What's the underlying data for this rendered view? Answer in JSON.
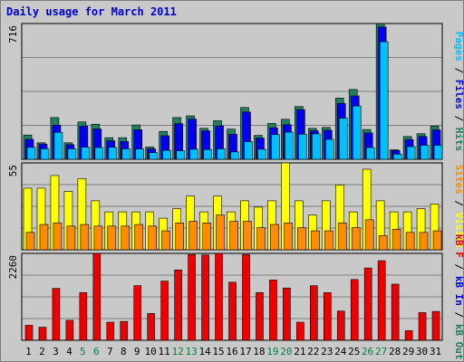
{
  "title": "Daily usage for March 2011",
  "colors": {
    "hits": "#1f7f5f",
    "files": "#0000ee",
    "pages": "#00bfff",
    "visits": "#ffff00",
    "sites": "#ff8c00",
    "kb_in": "#ee0000",
    "kb_out": "#ff7f00",
    "weekend_label": "#008040",
    "weekday_label": "#000000",
    "panel_bg": "#c9c9c9",
    "grid": "#808080"
  },
  "chart_data": [
    {
      "type": "bar",
      "panel": "top",
      "ymax_label": "716",
      "ylim": [
        0,
        716
      ],
      "right_label_parts": [
        {
          "text": "Pages",
          "color": "#00bfff"
        },
        {
          "text": " / ",
          "color": "#000000"
        },
        {
          "text": "Files",
          "color": "#0000ee"
        },
        {
          "text": " / ",
          "color": "#000000"
        },
        {
          "text": "Hits",
          "color": "#1f7f5f"
        }
      ],
      "categories": [
        "1",
        "2",
        "3",
        "4",
        "5",
        "6",
        "7",
        "8",
        "9",
        "10",
        "11",
        "12",
        "13",
        "14",
        "15",
        "16",
        "17",
        "18",
        "19",
        "20",
        "21",
        "22",
        "23",
        "24",
        "25",
        "26",
        "27",
        "28",
        "29",
        "30",
        "31"
      ],
      "series": [
        {
          "name": "Hits",
          "values": [
            128,
            87,
            220,
            87,
            197,
            185,
            114,
            114,
            181,
            65,
            147,
            220,
            229,
            163,
            203,
            159,
            273,
            126,
            189,
            211,
            278,
            163,
            168,
            323,
            368,
            157,
            716,
            50,
            120,
            135,
            175
          ]
        },
        {
          "name": "Files",
          "values": [
            105,
            80,
            180,
            77,
            175,
            160,
            98,
            94,
            156,
            55,
            124,
            188,
            212,
            150,
            176,
            132,
            249,
            112,
            166,
            183,
            262,
            150,
            153,
            295,
            334,
            139,
            698,
            47,
            104,
            120,
            155
          ]
        },
        {
          "name": "Pages",
          "values": [
            63,
            55,
            142,
            55,
            64,
            62,
            63,
            55,
            54,
            35,
            47,
            45,
            53,
            51,
            55,
            39,
            93,
            53,
            130,
            143,
            132,
            134,
            105,
            217,
            281,
            62,
            620,
            27,
            67,
            74,
            74
          ]
        }
      ]
    },
    {
      "type": "bar",
      "panel": "middle",
      "ymax_label": "55",
      "ylim": [
        0,
        55
      ],
      "right_label_parts": [
        {
          "text": "Sites",
          "color": "#ff8c00"
        },
        {
          "text": " / ",
          "color": "#000000"
        },
        {
          "text": "Visits",
          "color": "#ffff00"
        }
      ],
      "categories": [
        "1",
        "2",
        "3",
        "4",
        "5",
        "6",
        "7",
        "8",
        "9",
        "10",
        "11",
        "12",
        "13",
        "14",
        "15",
        "16",
        "17",
        "18",
        "19",
        "20",
        "21",
        "22",
        "23",
        "24",
        "25",
        "26",
        "27",
        "28",
        "29",
        "30",
        "31"
      ],
      "series": [
        {
          "name": "Visits",
          "values": [
            39,
            39,
            47,
            37,
            45,
            31,
            24,
            24,
            24,
            24,
            20,
            26,
            34,
            24,
            34,
            24,
            31,
            27,
            31,
            55,
            31,
            22,
            31,
            41,
            24,
            51,
            31,
            24,
            24,
            26,
            29
          ]
        },
        {
          "name": "Sites",
          "values": [
            11,
            16,
            17,
            15,
            16,
            15,
            15,
            15,
            16,
            15,
            12,
            17,
            18,
            17,
            22,
            18,
            18,
            14,
            16,
            17,
            14,
            12,
            12,
            17,
            14,
            19,
            9,
            13,
            11,
            11,
            12
          ]
        }
      ]
    },
    {
      "type": "bar",
      "panel": "bottom",
      "ymax_label": "2260",
      "ylim": [
        0,
        2260
      ],
      "right_label_parts": [
        {
          "text": "kB F",
          "color": "#ee0000"
        },
        {
          "text": " / ",
          "color": "#000000"
        },
        {
          "text": "kB In",
          "color": "#0000ee"
        },
        {
          "text": " / ",
          "color": "#000000"
        },
        {
          "text": "kB Out",
          "color": "#1f7f5f"
        }
      ],
      "categories": [
        "1",
        "2",
        "3",
        "4",
        "5",
        "6",
        "7",
        "8",
        "9",
        "10",
        "11",
        "12",
        "13",
        "14",
        "15",
        "16",
        "17",
        "18",
        "19",
        "20",
        "21",
        "22",
        "23",
        "24",
        "25",
        "26",
        "27",
        "28",
        "29",
        "30",
        "31"
      ],
      "series": [
        {
          "name": "kB F",
          "values": [
            390,
            340,
            1350,
            520,
            1240,
            2260,
            470,
            490,
            1420,
            700,
            1540,
            1830,
            2230,
            2220,
            2260,
            1510,
            2230,
            1240,
            1570,
            1360,
            470,
            1420,
            1240,
            760,
            1580,
            1880,
            2070,
            1460,
            250,
            720,
            750
          ]
        }
      ]
    }
  ],
  "x_labels": [
    {
      "text": "1",
      "weekend": false
    },
    {
      "text": "2",
      "weekend": false
    },
    {
      "text": "3",
      "weekend": false
    },
    {
      "text": "4",
      "weekend": false
    },
    {
      "text": "5",
      "weekend": true
    },
    {
      "text": "6",
      "weekend": true
    },
    {
      "text": "7",
      "weekend": false
    },
    {
      "text": "8",
      "weekend": false
    },
    {
      "text": "9",
      "weekend": false
    },
    {
      "text": "10",
      "weekend": false
    },
    {
      "text": "11",
      "weekend": false
    },
    {
      "text": "12",
      "weekend": true
    },
    {
      "text": "13",
      "weekend": true
    },
    {
      "text": "14",
      "weekend": false
    },
    {
      "text": "15",
      "weekend": false
    },
    {
      "text": "16",
      "weekend": false
    },
    {
      "text": "17",
      "weekend": false
    },
    {
      "text": "18",
      "weekend": false
    },
    {
      "text": "19",
      "weekend": true
    },
    {
      "text": "20",
      "weekend": true
    },
    {
      "text": "21",
      "weekend": false
    },
    {
      "text": "22",
      "weekend": false
    },
    {
      "text": "23",
      "weekend": false
    },
    {
      "text": "24",
      "weekend": false
    },
    {
      "text": "25",
      "weekend": false
    },
    {
      "text": "26",
      "weekend": true
    },
    {
      "text": "27",
      "weekend": true
    },
    {
      "text": "28",
      "weekend": false
    },
    {
      "text": "29",
      "weekend": false
    },
    {
      "text": "30",
      "weekend": false
    },
    {
      "text": "31",
      "weekend": false
    }
  ]
}
